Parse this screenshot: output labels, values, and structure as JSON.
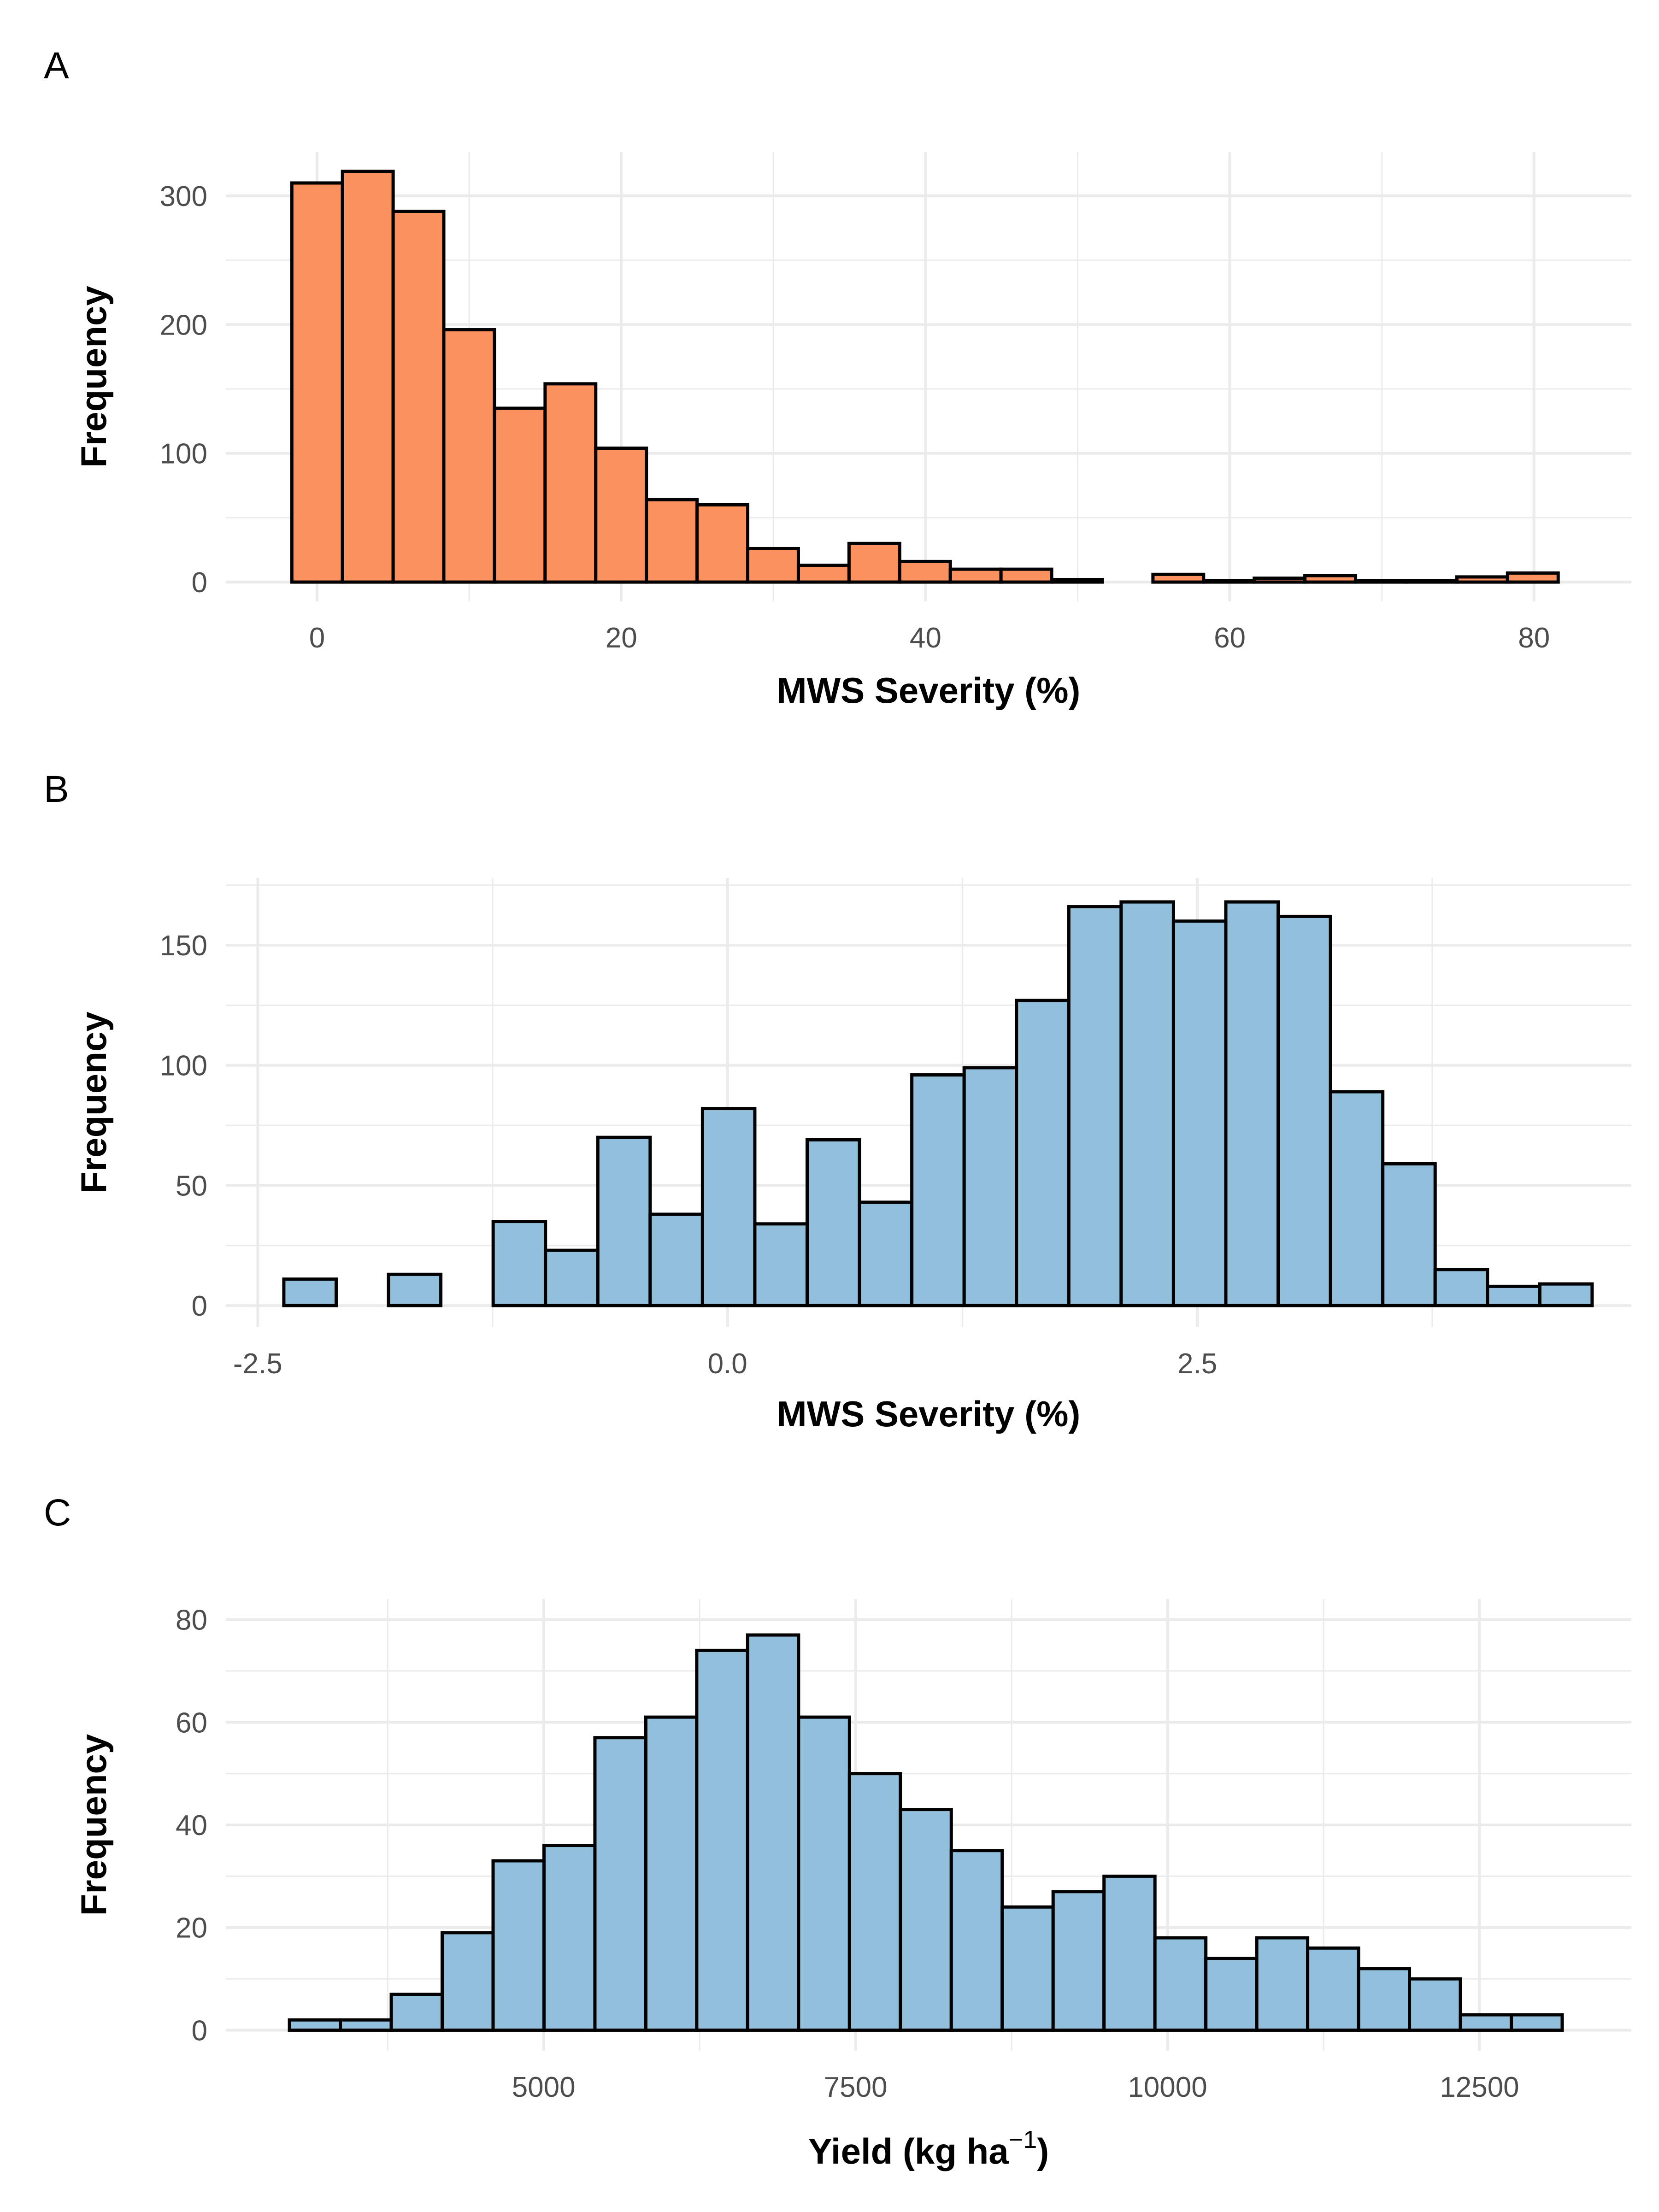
{
  "colors": {
    "orange": "#FC9160",
    "blue": "#92BFDC",
    "outline": "#000000",
    "grid": "#EBEBEB",
    "tick_text": "#4D4D4D"
  },
  "chart_data": [
    {
      "panel_label": "A",
      "type": "bar",
      "subtype": "histogram",
      "fill": "#FC9160",
      "xlabel": "MWS Severity (%)",
      "ylabel": "Frequency",
      "xlim": [
        -6.0,
        86.4
      ],
      "ylim": [
        -15,
        334
      ],
      "xticks": [
        0,
        20,
        40,
        60,
        80
      ],
      "xtick_labels": [
        "0",
        "20",
        "40",
        "60",
        "80"
      ],
      "yticks": [
        0,
        100,
        200,
        300
      ],
      "ytick_labels": [
        "0",
        "100",
        "200",
        "300"
      ],
      "grid": true,
      "bin_width": 3.33,
      "bin_start": -1.66,
      "counts": [
        310,
        319,
        288,
        196,
        135,
        154,
        104,
        64,
        60,
        26,
        13,
        30,
        16,
        10,
        10,
        2,
        0,
        6,
        1,
        3,
        5,
        1,
        1,
        4,
        7
      ]
    },
    {
      "panel_label": "B",
      "type": "bar",
      "subtype": "histogram",
      "fill": "#92BFDC",
      "xlabel": "MWS Severity (%)",
      "ylabel": "Frequency",
      "xlim": [
        -2.67,
        4.81
      ],
      "ylim": [
        -9,
        178
      ],
      "xticks": [
        -2.5,
        0.0,
        2.5
      ],
      "xtick_labels": [
        "-2.5",
        "0.0",
        "2.5"
      ],
      "yticks": [
        0,
        50,
        100,
        150
      ],
      "ytick_labels": [
        "0",
        "50",
        "100",
        "150"
      ],
      "grid": true,
      "bin_width": 0.2785,
      "bin_start": -2.3612,
      "counts": [
        11,
        0,
        13,
        0,
        35,
        23,
        70,
        38,
        82,
        34,
        69,
        43,
        96,
        99,
        127,
        166,
        168,
        160,
        168,
        162,
        89,
        59,
        15,
        8,
        9
      ]
    },
    {
      "panel_label": "C",
      "type": "bar",
      "subtype": "histogram",
      "fill": "#92BFDC",
      "xlabel": "Yield (kg ha",
      "xlabel_superscript": "−1",
      "xlabel_suffix": ")",
      "ylabel": "Frequency",
      "xlim": [
        2453,
        13717
      ],
      "ylim": [
        -4,
        84
      ],
      "xticks": [
        5000,
        7500,
        10000,
        12500
      ],
      "xtick_labels": [
        "5000",
        "7500",
        "10000",
        "12500"
      ],
      "yticks": [
        0,
        20,
        40,
        60,
        80
      ],
      "ytick_labels": [
        "0",
        "20",
        "40",
        "60",
        "80"
      ],
      "grid": true,
      "bin_width": 408,
      "bin_start": 2963,
      "counts": [
        2,
        2,
        7,
        19,
        33,
        36,
        57,
        61,
        74,
        77,
        61,
        50,
        43,
        35,
        24,
        27,
        30,
        18,
        14,
        18,
        16,
        12,
        10,
        3,
        3
      ]
    }
  ]
}
